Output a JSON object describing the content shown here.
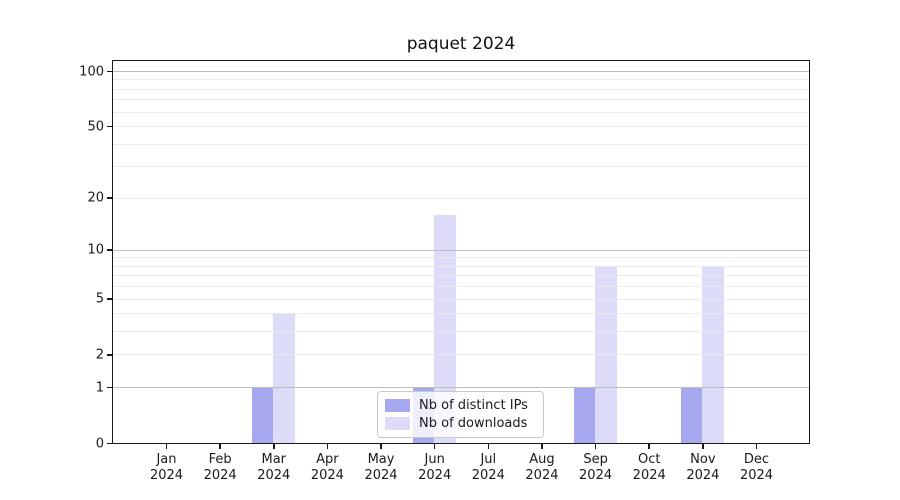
{
  "chart_data": {
    "type": "bar",
    "title": "paquet 2024",
    "categories": [
      "Jan 2024",
      "Feb 2024",
      "Mar 2024",
      "Apr 2024",
      "May 2024",
      "Jun 2024",
      "Jul 2024",
      "Aug 2024",
      "Sep 2024",
      "Oct 2024",
      "Nov 2024",
      "Dec 2024"
    ],
    "series": [
      {
        "name": "Nb of distinct IPs",
        "color": "#a8a8f0",
        "values": [
          0,
          0,
          1,
          0,
          0,
          1,
          0,
          0,
          1,
          0,
          1,
          0
        ]
      },
      {
        "name": "Nb of downloads",
        "color": "#dcdcf8",
        "values": [
          0,
          0,
          4,
          0,
          0,
          16,
          0,
          0,
          8,
          0,
          8,
          0
        ]
      }
    ],
    "xlabel": "",
    "ylabel": "",
    "yticks": [
      0,
      1,
      2,
      5,
      10,
      20,
      50,
      100
    ],
    "grid_major": [
      1,
      10,
      100
    ],
    "grid_minor": [
      2,
      3,
      4,
      5,
      6,
      7,
      8,
      9,
      20,
      30,
      40,
      50,
      60,
      70,
      80,
      90
    ],
    "ylim": [
      0,
      115
    ],
    "yscale": "log10(value+1)",
    "grid": "horizontal",
    "legend_position": "bottom-center",
    "colors": {
      "grid_major": "#bdbdbd",
      "grid_minor": "#ebebeb",
      "spine": "#1a1a1a",
      "background": "#ffffff"
    }
  }
}
